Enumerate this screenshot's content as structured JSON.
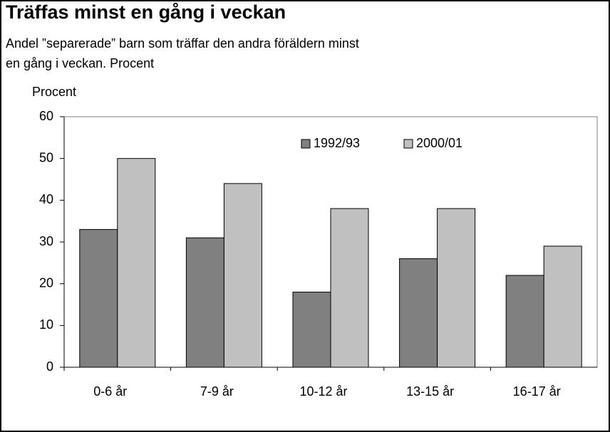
{
  "chart_data": {
    "type": "bar",
    "title": "Träffas minst en gång i veckan",
    "subtitle": [
      "Andel ”separerade” barn som träffar den andra föräldern minst",
      "en gång i veckan. Procent"
    ],
    "y_label": "Procent",
    "categories": [
      "0-6 år",
      "7-9 år",
      "10-12 år",
      "13-15 år",
      "16-17 år"
    ],
    "series": [
      {
        "name": "1992/93",
        "color": "#808080",
        "values": [
          33,
          31,
          18,
          26,
          22
        ]
      },
      {
        "name": "2000/01",
        "color": "#c0c0c0",
        "values": [
          50,
          44,
          38,
          38,
          29
        ]
      }
    ],
    "ylim": [
      0,
      60
    ],
    "yticks": [
      0,
      10,
      20,
      30,
      40,
      50,
      60
    ],
    "grid": false,
    "legend": "top"
  }
}
